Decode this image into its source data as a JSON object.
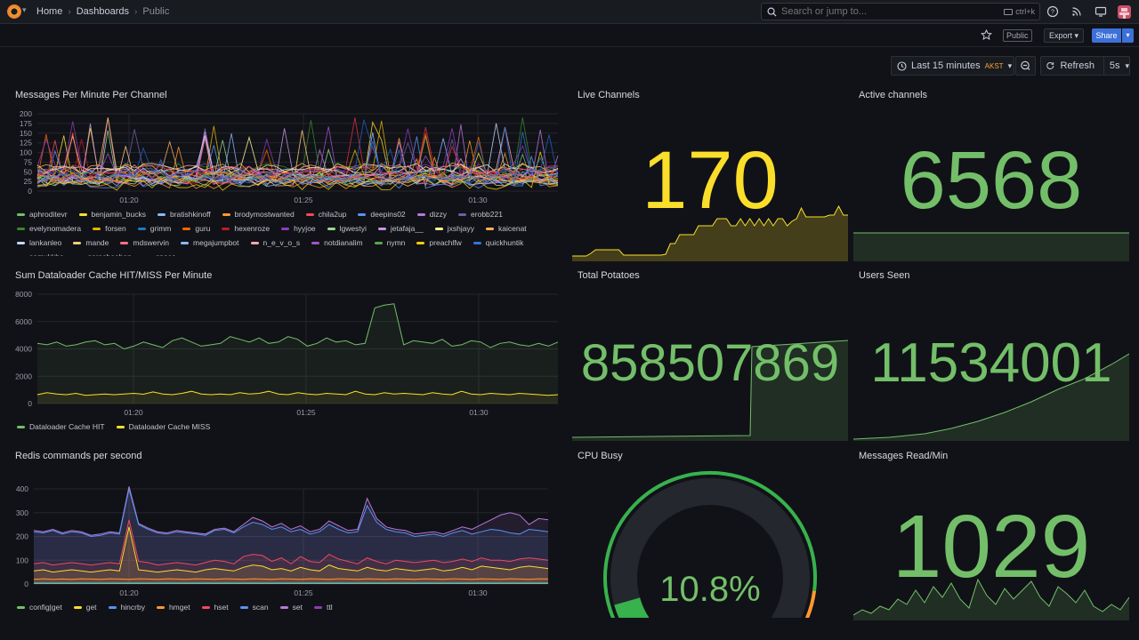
{
  "topbar": {
    "crumbs": [
      "Home",
      "Dashboards",
      "Public"
    ],
    "search_placeholder": "Search or jump to...",
    "search_shortcut": "ctrl+k"
  },
  "actions": {
    "public_tag": "Public",
    "export_label": "Export",
    "share_label": "Share"
  },
  "controls": {
    "time_range": "Last 15 minutes",
    "timezone": "AKST",
    "refresh_label": "Refresh",
    "refresh_interval": "5s"
  },
  "colors": {
    "green": "#73bf69",
    "yellow": "#fade2a",
    "blue": "#5794f2",
    "purple": "#b877d9",
    "orange": "#ff9830",
    "red": "#f2495c",
    "bg": "#111217",
    "panel": "#181b1f"
  },
  "panels": {
    "messages_per_minute": {
      "title": "Messages Per Minute Per Channel",
      "yticks": [
        "200",
        "175",
        "150",
        "125",
        "100",
        "75",
        "50",
        "25",
        "0"
      ],
      "xticks": [
        "01:20",
        "01:25",
        "01:30"
      ],
      "legend": [
        {
          "name": "aphroditevr",
          "color": "#73bf69"
        },
        {
          "name": "benjamin_bucks",
          "color": "#fade2a"
        },
        {
          "name": "bratishkinoff",
          "color": "#8ab8ff"
        },
        {
          "name": "brodymostwanted",
          "color": "#ff9830"
        },
        {
          "name": "chila2up",
          "color": "#f2495c"
        },
        {
          "name": "deepins02",
          "color": "#5794f2"
        },
        {
          "name": "dizzy",
          "color": "#b877d9"
        },
        {
          "name": "erobb221",
          "color": "#705da0"
        },
        {
          "name": "evelynomadera",
          "color": "#37872d"
        },
        {
          "name": "forsen",
          "color": "#e0b400"
        },
        {
          "name": "grimm",
          "color": "#1f78c1"
        },
        {
          "name": "guru",
          "color": "#fa6400"
        },
        {
          "name": "hexenroze",
          "color": "#c4162a"
        },
        {
          "name": "hyyjoe",
          "color": "#8f3bb8"
        },
        {
          "name": "lgwestyi",
          "color": "#96d98d"
        },
        {
          "name": "jetafaja__",
          "color": "#ca95e5"
        },
        {
          "name": "jxshjayy",
          "color": "#fff899"
        },
        {
          "name": "kaicenat",
          "color": "#ffb357"
        },
        {
          "name": "lankanleo",
          "color": "#c0d8ff"
        },
        {
          "name": "mande",
          "color": "#ffcb7d"
        },
        {
          "name": "mdswervin",
          "color": "#ff7383"
        },
        {
          "name": "megajumpbot",
          "color": "#8ab8ff"
        },
        {
          "name": "n_e_v_o_s",
          "color": "#ffa6b0"
        },
        {
          "name": "notdianalim",
          "color": "#a352cc"
        },
        {
          "name": "nymn",
          "color": "#56a64b"
        },
        {
          "name": "preachlfw",
          "color": "#f2cc0c"
        },
        {
          "name": "quickhuntik",
          "color": "#3274d9"
        },
        {
          "name": "samukkha",
          "color": "#ff780a"
        },
        {
          "name": "sarasheehan",
          "color": "#e02f44"
        },
        {
          "name": "space",
          "color": "#1f60c4"
        }
      ]
    },
    "live_channels": {
      "title": "Live Channels",
      "value": "170",
      "color": "#fade2a",
      "spark": [
        6,
        6,
        6,
        6,
        9,
        13,
        13,
        13,
        13,
        13,
        13,
        7,
        7,
        7,
        7,
        7,
        7,
        7,
        7,
        7,
        8,
        20,
        20,
        30,
        30,
        30,
        30,
        40,
        40,
        40,
        40,
        48,
        48,
        48,
        40,
        40,
        48,
        40,
        48,
        40,
        48,
        40,
        48,
        40,
        48,
        48,
        40,
        45,
        48,
        60,
        50,
        50,
        50,
        50,
        50,
        52,
        52,
        62,
        52,
        52
      ]
    },
    "active_channels": {
      "title": "Active channels",
      "value": "6568",
      "color": "#73bf69"
    },
    "dataloader": {
      "title": "Sum Dataloader Cache HIT/MISS Per Minute",
      "yticks": [
        "8000",
        "6000",
        "4000",
        "2000",
        "0"
      ],
      "xticks": [
        "01:20",
        "01:25",
        "01:30"
      ],
      "ylim": [
        0,
        8000
      ],
      "series": [
        {
          "name": "Dataloader Cache HIT",
          "color": "#73bf69",
          "values": [
            4400,
            4300,
            4500,
            4200,
            4300,
            4500,
            4600,
            4300,
            4400,
            4000,
            4200,
            4500,
            4300,
            4100,
            4600,
            4800,
            4500,
            4200,
            4300,
            4400,
            4900,
            4700,
            4500,
            4800,
            4400,
            4500,
            4900,
            4700,
            4200,
            4400,
            4800,
            4500,
            4600,
            4300,
            4400,
            7000,
            7200,
            7300,
            4300,
            4600,
            4500,
            4400,
            4700,
            4200,
            4300,
            4600,
            4500,
            4100,
            4400,
            4500,
            4300,
            4200,
            4400,
            4200,
            4500
          ]
        },
        {
          "name": "Dataloader Cache MISS",
          "color": "#fade2a",
          "values": [
            650,
            800,
            700,
            650,
            750,
            600,
            650,
            700,
            650,
            700,
            750,
            680,
            850,
            700,
            650,
            750,
            900,
            700,
            650,
            700,
            650,
            800,
            700,
            750,
            900,
            700,
            650,
            800,
            700,
            650,
            750,
            700,
            650,
            900,
            700,
            650,
            800,
            700,
            750,
            700,
            650,
            800,
            700,
            650,
            900,
            700,
            650,
            750,
            700,
            650,
            750,
            700,
            650,
            600,
            650
          ]
        }
      ]
    },
    "total_potatoes": {
      "title": "Total Potatoes",
      "value": "858507869",
      "color": "#73bf69"
    },
    "users_seen": {
      "title": "Users Seen",
      "value": "11534001",
      "color": "#73bf69"
    },
    "redis": {
      "title": "Redis commands per second",
      "yticks": [
        "400",
        "300",
        "200",
        "100",
        "0"
      ],
      "xticks": [
        "01:20",
        "01:25",
        "01:30"
      ],
      "ylim": [
        0,
        450
      ],
      "series": [
        {
          "name": "config|get",
          "color": "#73bf69",
          "values": [
            2,
            2,
            2,
            2,
            2,
            2,
            2,
            2,
            2,
            2,
            2,
            2,
            2,
            2,
            2,
            2,
            2,
            2,
            2,
            2,
            2,
            2,
            2,
            2,
            2,
            2,
            2,
            2,
            2,
            2,
            2,
            2,
            2,
            2,
            2,
            2,
            2,
            2,
            2,
            2,
            2,
            2,
            2,
            2,
            2,
            2,
            2,
            2,
            2,
            2,
            2,
            2,
            2,
            2,
            2
          ]
        },
        {
          "name": "get",
          "color": "#fade2a",
          "values": [
            55,
            60,
            50,
            55,
            60,
            55,
            50,
            55,
            60,
            55,
            240,
            60,
            55,
            50,
            55,
            60,
            55,
            50,
            60,
            65,
            60,
            55,
            70,
            80,
            75,
            60,
            65,
            55,
            70,
            60,
            55,
            80,
            65,
            60,
            55,
            70,
            60,
            55,
            65,
            60,
            55,
            60,
            65,
            55,
            60,
            70,
            60,
            75,
            70,
            65,
            60,
            70,
            75,
            70,
            65
          ]
        },
        {
          "name": "hincrby",
          "color": "#5794f2",
          "values": [
            220,
            215,
            225,
            210,
            220,
            215,
            200,
            205,
            215,
            210,
            400,
            250,
            230,
            215,
            210,
            220,
            215,
            210,
            205,
            225,
            230,
            215,
            240,
            260,
            250,
            230,
            240,
            220,
            230,
            210,
            220,
            250,
            230,
            215,
            220,
            330,
            260,
            230,
            220,
            215,
            200,
            205,
            210,
            200,
            215,
            225,
            210,
            220,
            230,
            225,
            215,
            210,
            230,
            225,
            220
          ]
        },
        {
          "name": "hmget",
          "color": "#ff9830",
          "values": [
            20,
            22,
            20,
            21,
            20,
            22,
            21,
            20,
            22,
            21,
            20,
            22,
            21,
            20,
            22,
            21,
            20,
            22,
            21,
            20,
            22,
            21,
            20,
            22,
            21,
            20,
            22,
            21,
            20,
            22,
            21,
            20,
            22,
            21,
            20,
            22,
            21,
            20,
            22,
            21,
            20,
            22,
            21,
            20,
            22,
            21,
            20,
            22,
            21,
            20,
            22,
            21,
            20,
            22,
            21
          ]
        },
        {
          "name": "hset",
          "color": "#f2495c",
          "values": [
            85,
            90,
            80,
            85,
            90,
            85,
            80,
            85,
            90,
            85,
            270,
            95,
            90,
            80,
            85,
            90,
            85,
            80,
            90,
            100,
            95,
            85,
            115,
            125,
            120,
            95,
            110,
            85,
            115,
            95,
            90,
            125,
            105,
            95,
            85,
            110,
            95,
            85,
            100,
            95,
            90,
            95,
            100,
            90,
            95,
            105,
            95,
            110,
            100,
            100,
            95,
            105,
            110,
            105,
            100
          ]
        },
        {
          "name": "scan",
          "color": "#5794f2",
          "values": [
            5,
            5,
            5,
            5,
            5,
            5,
            5,
            5,
            5,
            5,
            5,
            5,
            5,
            5,
            5,
            5,
            5,
            5,
            5,
            5,
            5,
            5,
            5,
            5,
            5,
            5,
            5,
            5,
            5,
            5,
            5,
            5,
            5,
            5,
            5,
            5,
            5,
            5,
            5,
            5,
            5,
            5,
            5,
            5,
            5,
            5,
            5,
            5,
            5,
            5,
            5,
            5,
            5,
            5,
            5
          ]
        },
        {
          "name": "set",
          "color": "#b877d9",
          "values": [
            225,
            220,
            230,
            215,
            225,
            220,
            205,
            210,
            220,
            215,
            410,
            255,
            235,
            220,
            215,
            225,
            220,
            215,
            210,
            230,
            235,
            220,
            250,
            280,
            265,
            240,
            255,
            230,
            245,
            220,
            230,
            265,
            245,
            225,
            230,
            360,
            275,
            240,
            230,
            225,
            210,
            215,
            220,
            210,
            225,
            240,
            230,
            250,
            270,
            290,
            300,
            290,
            250,
            275,
            270
          ]
        },
        {
          "name": "ttl",
          "color": "#8f3bb8",
          "values": [
            3,
            3,
            3,
            3,
            3,
            3,
            3,
            3,
            3,
            3,
            3,
            3,
            3,
            3,
            3,
            3,
            3,
            3,
            3,
            3,
            3,
            3,
            3,
            3,
            3,
            3,
            3,
            3,
            3,
            3,
            3,
            3,
            3,
            3,
            3,
            3,
            3,
            3,
            3,
            3,
            3,
            3,
            3,
            3,
            3,
            3,
            3,
            3,
            3,
            3,
            3,
            3,
            3,
            3,
            3
          ]
        }
      ]
    },
    "cpu_busy": {
      "title": "CPU Busy",
      "value": "10.8%",
      "percent": 10.8,
      "color": "#73bf69"
    },
    "messages_read": {
      "title": "Messages Read/Min",
      "value": "1029",
      "color": "#73bf69"
    }
  }
}
